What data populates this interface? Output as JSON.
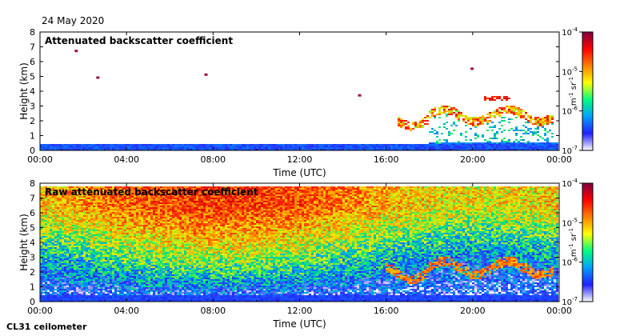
{
  "date_label": "24 May 2020",
  "instrument_label": "CL31 ceilometer",
  "chart_data": [
    {
      "type": "heatmap",
      "title": "Attenuated backscatter coefficient",
      "xlabel": "Time (UTC)",
      "ylabel": "Height (km)",
      "x_ticks": [
        "00:00",
        "04:00",
        "08:00",
        "12:00",
        "16:00",
        "20:00",
        "00:00"
      ],
      "x_range_hours": [
        0,
        24
      ],
      "y_ticks": [
        0,
        1,
        2,
        3,
        4,
        5,
        6,
        7,
        8
      ],
      "ylim": [
        0,
        8
      ],
      "colorbar": {
        "label_base": "m",
        "label_exp1": "-1",
        "label_mid": " sr",
        "label_exp2": "-1",
        "scale": "log",
        "range": [
          1e-07,
          0.0001
        ],
        "tick_base": "10",
        "ticks": [
          "-7",
          "-6",
          "-5",
          "-4"
        ],
        "colors": [
          "#ffffff",
          "#2020ff",
          "#00a0ff",
          "#00ff80",
          "#ffff00",
          "#ff8000",
          "#ff0000",
          "#800040"
        ]
      },
      "layers": [
        {
          "feature": "near-surface layer",
          "t_start": 0,
          "t_end": 24,
          "h_base": 0,
          "h_top": 0.4,
          "level": "1e-6.6"
        },
        {
          "feature": "aerosol/cloud layer",
          "t_start": 16.5,
          "t_end": 23.8,
          "h_base": 1.8,
          "h_top": 2.8,
          "level": "1e-5.3"
        },
        {
          "feature": "cloud patch",
          "t_start": 20.5,
          "t_end": 21.8,
          "h_base": 3.4,
          "h_top": 3.7,
          "level": "1e-5"
        },
        {
          "feature": "isolated returns",
          "times": [
            1.6,
            2.6,
            7.6,
            14.7,
            19.9
          ],
          "heights": [
            6.8,
            5.0,
            5.2,
            3.8,
            5.6
          ]
        }
      ]
    },
    {
      "type": "heatmap",
      "title": "Raw attenuated backscatter coefficient",
      "xlabel": "Time (UTC)",
      "ylabel": "Height (km)",
      "x_ticks": [
        "00:00",
        "04:00",
        "08:00",
        "12:00",
        "16:00",
        "20:00",
        "00:00"
      ],
      "x_range_hours": [
        0,
        24
      ],
      "y_ticks": [
        0,
        1,
        2,
        3,
        4,
        5,
        6,
        7,
        8
      ],
      "ylim": [
        0,
        8
      ],
      "colorbar": {
        "label_base": "m",
        "label_exp1": "-1",
        "label_mid": " sr",
        "label_exp2": "-1",
        "scale": "log",
        "range": [
          1e-07,
          0.0001
        ],
        "tick_base": "10",
        "ticks": [
          "-7",
          "-6",
          "-5",
          "-4"
        ],
        "colors": [
          "#ffffff",
          "#2020ff",
          "#00a0ff",
          "#00ff80",
          "#ffff00",
          "#ff8000",
          "#ff0000",
          "#800040"
        ]
      },
      "layers": [
        {
          "feature": "noise field increasing with height",
          "t_start": 0,
          "t_end": 24,
          "h_base": 0,
          "h_top": 7.8
        },
        {
          "feature": "aerosol/cloud layer",
          "t_start": 16,
          "t_end": 23.8,
          "h_base": 1.6,
          "h_top": 2.8
        }
      ]
    }
  ]
}
